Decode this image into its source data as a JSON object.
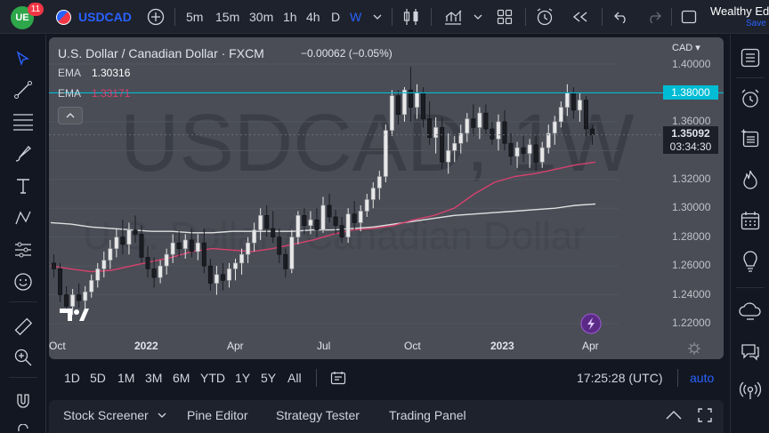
{
  "app": {
    "notification_count": "11",
    "symbol": "USDCAD",
    "brand": "Wealthy Ed",
    "save_label": "Save",
    "intervals": [
      "5m",
      "15m",
      "30m",
      "1h",
      "4h",
      "D",
      "W"
    ],
    "active_interval": "W"
  },
  "legend": {
    "title": "U.S. Dollar / Canadian Dollar · FXCM",
    "change": "−0.00062 (−0.05%)",
    "ema1_label": "EMA",
    "ema1_value": "1.30316",
    "ema2_label": "EMA",
    "ema2_value": "1.33171"
  },
  "watermark": {
    "symbol": "USDCAD, 1W",
    "name": "U.S. Dollar / Canadian Dollar"
  },
  "price_scale": {
    "currency": "CAD",
    "ticks": [
      "1.40000",
      "1.36000",
      "1.32000",
      "1.30000",
      "1.28000",
      "1.26000",
      "1.24000",
      "1.22000"
    ],
    "horizontal_line_price": "1.38000",
    "last_price": "1.35092",
    "countdown": "03:34:30"
  },
  "time_scale": {
    "ticks": [
      "Oct",
      "2022",
      "Apr",
      "Jul",
      "Oct",
      "2023",
      "Apr"
    ]
  },
  "colors": {
    "hline": "#00bcd4",
    "ema_fast": "#d8416e",
    "ema_slow": "#e0e0e0",
    "candle_up": "#e8e8e8",
    "candle_down": "#1b1d23",
    "accent": "#2962ff"
  },
  "chart_data": {
    "type": "candlestick",
    "timeframe": "1W",
    "instrument": "USDCAD",
    "ylim": [
      1.21,
      1.41
    ],
    "candles": [
      {
        "o": 1.262,
        "h": 1.268,
        "l": 1.252,
        "c": 1.258
      },
      {
        "o": 1.258,
        "h": 1.262,
        "l": 1.235,
        "c": 1.24
      },
      {
        "o": 1.24,
        "h": 1.246,
        "l": 1.228,
        "c": 1.232
      },
      {
        "o": 1.232,
        "h": 1.244,
        "l": 1.226,
        "c": 1.24
      },
      {
        "o": 1.24,
        "h": 1.248,
        "l": 1.231,
        "c": 1.236
      },
      {
        "o": 1.236,
        "h": 1.246,
        "l": 1.229,
        "c": 1.242
      },
      {
        "o": 1.242,
        "h": 1.254,
        "l": 1.238,
        "c": 1.25
      },
      {
        "o": 1.25,
        "h": 1.262,
        "l": 1.245,
        "c": 1.258
      },
      {
        "o": 1.258,
        "h": 1.27,
        "l": 1.252,
        "c": 1.264
      },
      {
        "o": 1.264,
        "h": 1.278,
        "l": 1.258,
        "c": 1.272
      },
      {
        "o": 1.272,
        "h": 1.286,
        "l": 1.266,
        "c": 1.28
      },
      {
        "o": 1.28,
        "h": 1.292,
        "l": 1.268,
        "c": 1.275
      },
      {
        "o": 1.275,
        "h": 1.29,
        "l": 1.268,
        "c": 1.285
      },
      {
        "o": 1.285,
        "h": 1.295,
        "l": 1.276,
        "c": 1.282
      },
      {
        "o": 1.282,
        "h": 1.288,
        "l": 1.262,
        "c": 1.266
      },
      {
        "o": 1.266,
        "h": 1.274,
        "l": 1.252,
        "c": 1.258
      },
      {
        "o": 1.258,
        "h": 1.266,
        "l": 1.245,
        "c": 1.252
      },
      {
        "o": 1.252,
        "h": 1.264,
        "l": 1.248,
        "c": 1.26
      },
      {
        "o": 1.26,
        "h": 1.272,
        "l": 1.254,
        "c": 1.268
      },
      {
        "o": 1.268,
        "h": 1.282,
        "l": 1.262,
        "c": 1.276
      },
      {
        "o": 1.276,
        "h": 1.284,
        "l": 1.266,
        "c": 1.272
      },
      {
        "o": 1.272,
        "h": 1.282,
        "l": 1.265,
        "c": 1.278
      },
      {
        "o": 1.278,
        "h": 1.286,
        "l": 1.266,
        "c": 1.27
      },
      {
        "o": 1.27,
        "h": 1.282,
        "l": 1.264,
        "c": 1.276
      },
      {
        "o": 1.276,
        "h": 1.286,
        "l": 1.255,
        "c": 1.26
      },
      {
        "o": 1.26,
        "h": 1.265,
        "l": 1.243,
        "c": 1.248
      },
      {
        "o": 1.248,
        "h": 1.26,
        "l": 1.24,
        "c": 1.254
      },
      {
        "o": 1.254,
        "h": 1.262,
        "l": 1.243,
        "c": 1.25
      },
      {
        "o": 1.25,
        "h": 1.262,
        "l": 1.245,
        "c": 1.258
      },
      {
        "o": 1.258,
        "h": 1.265,
        "l": 1.25,
        "c": 1.262
      },
      {
        "o": 1.262,
        "h": 1.272,
        "l": 1.254,
        "c": 1.268
      },
      {
        "o": 1.268,
        "h": 1.28,
        "l": 1.262,
        "c": 1.276
      },
      {
        "o": 1.276,
        "h": 1.29,
        "l": 1.27,
        "c": 1.285
      },
      {
        "o": 1.285,
        "h": 1.3,
        "l": 1.278,
        "c": 1.295
      },
      {
        "o": 1.295,
        "h": 1.302,
        "l": 1.28,
        "c": 1.286
      },
      {
        "o": 1.286,
        "h": 1.298,
        "l": 1.276,
        "c": 1.28
      },
      {
        "o": 1.28,
        "h": 1.286,
        "l": 1.262,
        "c": 1.268
      },
      {
        "o": 1.268,
        "h": 1.272,
        "l": 1.252,
        "c": 1.258
      },
      {
        "o": 1.258,
        "h": 1.285,
        "l": 1.255,
        "c": 1.28
      },
      {
        "o": 1.28,
        "h": 1.298,
        "l": 1.275,
        "c": 1.295
      },
      {
        "o": 1.295,
        "h": 1.3,
        "l": 1.282,
        "c": 1.288
      },
      {
        "o": 1.288,
        "h": 1.298,
        "l": 1.282,
        "c": 1.292
      },
      {
        "o": 1.292,
        "h": 1.3,
        "l": 1.28,
        "c": 1.285
      },
      {
        "o": 1.285,
        "h": 1.308,
        "l": 1.283,
        "c": 1.302
      },
      {
        "o": 1.302,
        "h": 1.31,
        "l": 1.29,
        "c": 1.294
      },
      {
        "o": 1.294,
        "h": 1.299,
        "l": 1.282,
        "c": 1.288
      },
      {
        "o": 1.288,
        "h": 1.294,
        "l": 1.276,
        "c": 1.28
      },
      {
        "o": 1.28,
        "h": 1.3,
        "l": 1.276,
        "c": 1.296
      },
      {
        "o": 1.296,
        "h": 1.305,
        "l": 1.285,
        "c": 1.29
      },
      {
        "o": 1.29,
        "h": 1.302,
        "l": 1.284,
        "c": 1.298
      },
      {
        "o": 1.298,
        "h": 1.31,
        "l": 1.294,
        "c": 1.306
      },
      {
        "o": 1.306,
        "h": 1.318,
        "l": 1.3,
        "c": 1.314
      },
      {
        "o": 1.314,
        "h": 1.326,
        "l": 1.306,
        "c": 1.322
      },
      {
        "o": 1.322,
        "h": 1.358,
        "l": 1.318,
        "c": 1.354
      },
      {
        "o": 1.354,
        "h": 1.382,
        "l": 1.35,
        "c": 1.378
      },
      {
        "o": 1.378,
        "h": 1.382,
        "l": 1.358,
        "c": 1.365
      },
      {
        "o": 1.365,
        "h": 1.384,
        "l": 1.36,
        "c": 1.382
      },
      {
        "o": 1.382,
        "h": 1.398,
        "l": 1.36,
        "c": 1.37
      },
      {
        "o": 1.37,
        "h": 1.386,
        "l": 1.362,
        "c": 1.38
      },
      {
        "o": 1.38,
        "h": 1.384,
        "l": 1.356,
        "c": 1.362
      },
      {
        "o": 1.362,
        "h": 1.374,
        "l": 1.344,
        "c": 1.349
      },
      {
        "o": 1.349,
        "h": 1.363,
        "l": 1.338,
        "c": 1.356
      },
      {
        "o": 1.356,
        "h": 1.363,
        "l": 1.327,
        "c": 1.332
      },
      {
        "o": 1.332,
        "h": 1.352,
        "l": 1.324,
        "c": 1.34
      },
      {
        "o": 1.34,
        "h": 1.35,
        "l": 1.332,
        "c": 1.345
      },
      {
        "o": 1.345,
        "h": 1.358,
        "l": 1.338,
        "c": 1.352
      },
      {
        "o": 1.352,
        "h": 1.366,
        "l": 1.346,
        "c": 1.362
      },
      {
        "o": 1.362,
        "h": 1.372,
        "l": 1.35,
        "c": 1.356
      },
      {
        "o": 1.356,
        "h": 1.37,
        "l": 1.348,
        "c": 1.366
      },
      {
        "o": 1.366,
        "h": 1.372,
        "l": 1.35,
        "c": 1.355
      },
      {
        "o": 1.355,
        "h": 1.36,
        "l": 1.344,
        "c": 1.348
      },
      {
        "o": 1.348,
        "h": 1.365,
        "l": 1.34,
        "c": 1.36
      },
      {
        "o": 1.36,
        "h": 1.368,
        "l": 1.34,
        "c": 1.345
      },
      {
        "o": 1.345,
        "h": 1.352,
        "l": 1.33,
        "c": 1.336
      },
      {
        "o": 1.336,
        "h": 1.346,
        "l": 1.328,
        "c": 1.342
      },
      {
        "o": 1.342,
        "h": 1.35,
        "l": 1.332,
        "c": 1.338
      },
      {
        "o": 1.338,
        "h": 1.348,
        "l": 1.328,
        "c": 1.344
      },
      {
        "o": 1.344,
        "h": 1.35,
        "l": 1.326,
        "c": 1.332
      },
      {
        "o": 1.332,
        "h": 1.346,
        "l": 1.328,
        "c": 1.342
      },
      {
        "o": 1.342,
        "h": 1.358,
        "l": 1.338,
        "c": 1.352
      },
      {
        "o": 1.352,
        "h": 1.364,
        "l": 1.344,
        "c": 1.36
      },
      {
        "o": 1.36,
        "h": 1.374,
        "l": 1.356,
        "c": 1.37
      },
      {
        "o": 1.37,
        "h": 1.386,
        "l": 1.364,
        "c": 1.38
      },
      {
        "o": 1.38,
        "h": 1.384,
        "l": 1.362,
        "c": 1.368
      },
      {
        "o": 1.368,
        "h": 1.38,
        "l": 1.36,
        "c": 1.375
      },
      {
        "o": 1.375,
        "h": 1.378,
        "l": 1.35,
        "c": 1.355
      },
      {
        "o": 1.355,
        "h": 1.358,
        "l": 1.344,
        "c": 1.351
      }
    ],
    "ema_fast": {
      "name": "EMA",
      "value": 1.33171,
      "points": [
        1.26,
        1.258,
        1.256,
        1.257,
        1.26,
        1.263,
        1.266,
        1.27,
        1.272,
        1.271,
        1.27,
        1.272,
        1.275,
        1.278,
        1.282,
        1.285,
        1.286,
        1.288,
        1.292,
        1.295,
        1.3,
        1.31,
        1.318,
        1.322,
        1.324,
        1.327,
        1.33,
        1.332
      ]
    },
    "ema_slow": {
      "name": "EMA",
      "value": 1.30316,
      "points": [
        1.29,
        1.289,
        1.287,
        1.286,
        1.285,
        1.284,
        1.284,
        1.283,
        1.283,
        1.284,
        1.284,
        1.284,
        1.284,
        1.285,
        1.285,
        1.286,
        1.287,
        1.289,
        1.291,
        1.293,
        1.295,
        1.296,
        1.297,
        1.298,
        1.299,
        1.3,
        1.302,
        1.303
      ]
    },
    "hline": 1.38,
    "last_price": 1.35092
  },
  "range_bar": {
    "ranges": [
      "1D",
      "5D",
      "1M",
      "3M",
      "6M",
      "YTD",
      "1Y",
      "5Y",
      "All"
    ],
    "clock": "17:25:28 (UTC)",
    "auto_label": "auto"
  },
  "panel_bar": {
    "tabs": [
      "Stock Screener",
      "Pine Editor",
      "Strategy Tester",
      "Trading Panel"
    ]
  }
}
